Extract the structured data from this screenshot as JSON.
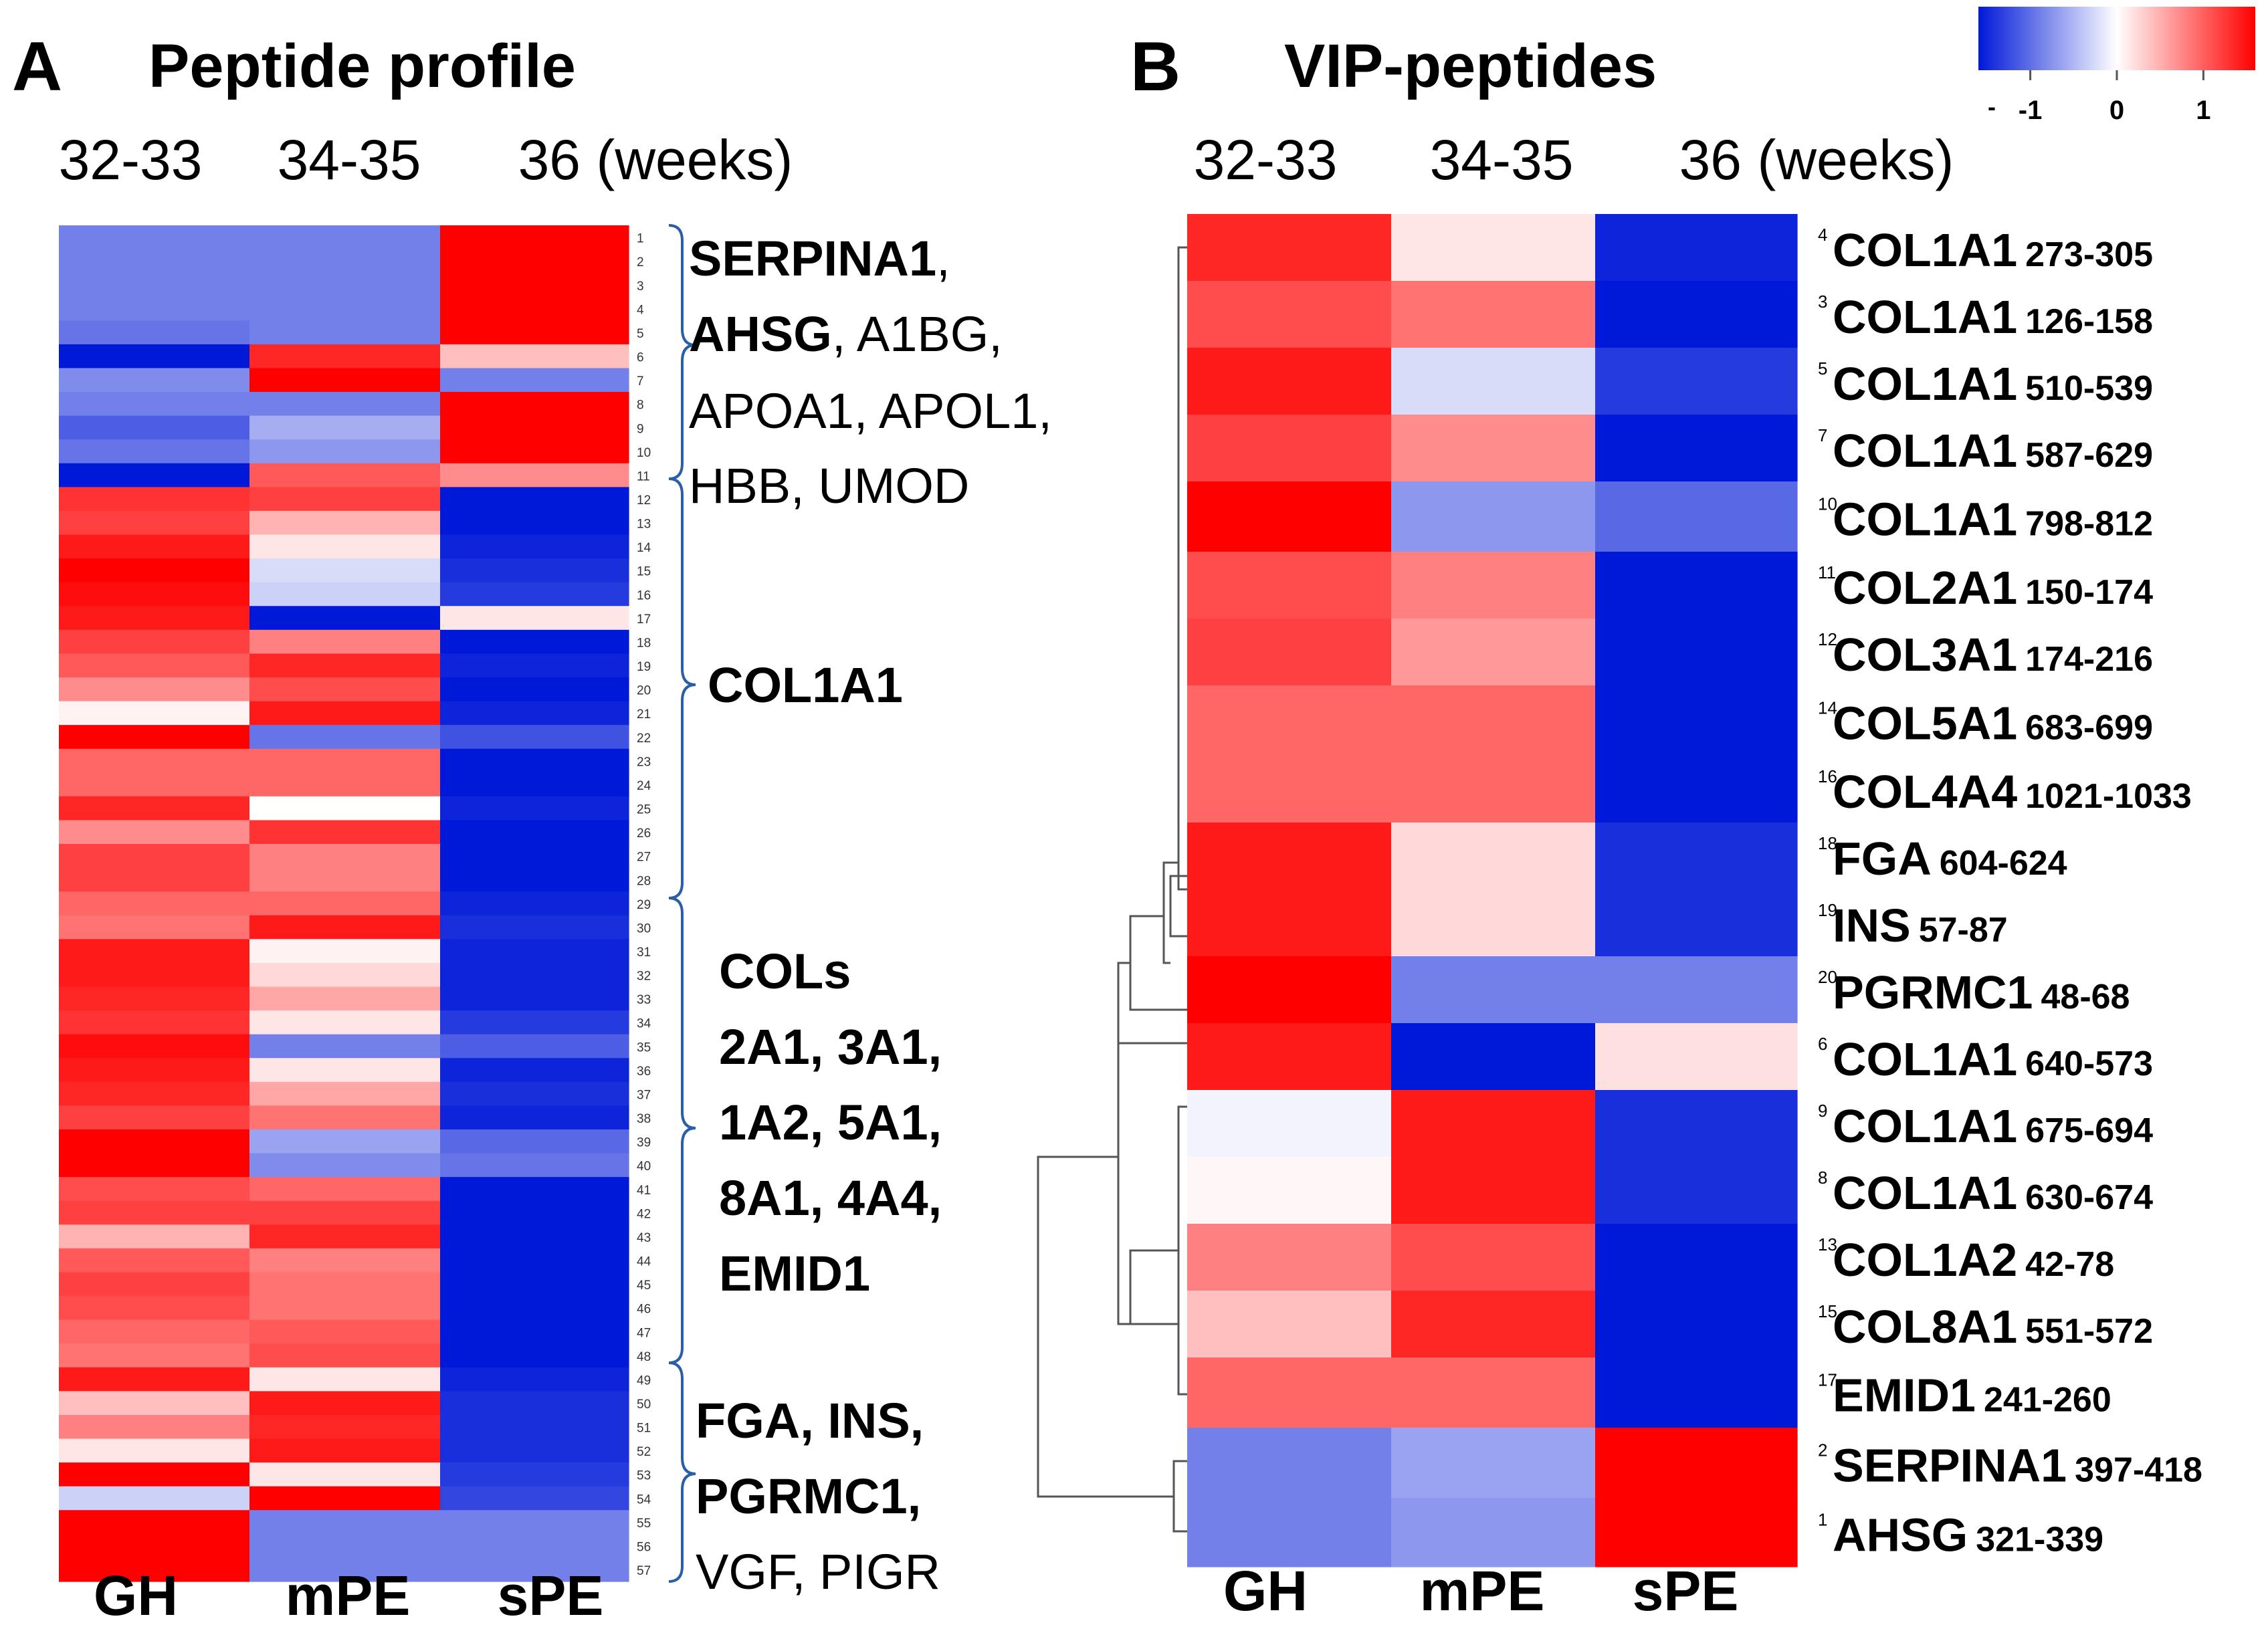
{
  "colors": {
    "low": "#0018d8",
    "mid": "#ffffff",
    "high": "#ff0000",
    "bracket": "#2a5fa8",
    "dendrogram": "#555555"
  },
  "colorbar": {
    "tick_labels": [
      "-1",
      "0",
      "1"
    ],
    "tick_values": [
      -1,
      0,
      1
    ],
    "range": [
      -1.6,
      1.6
    ],
    "minus_prefix": "-"
  },
  "chart_data": [
    {
      "type": "heatmap",
      "panel": "A",
      "title": "Peptide profile",
      "week_labels": [
        "32-33",
        "34-35",
        "36 (weeks)"
      ],
      "categories": [
        "GH",
        "mPE",
        "sPE"
      ],
      "row_labels": [
        "1",
        "2",
        "3",
        "4",
        "5",
        "6",
        "7",
        "8",
        "9",
        "10",
        "11",
        "12",
        "13",
        "14",
        "15",
        "16",
        "17",
        "18",
        "19",
        "20",
        "21",
        "22",
        "23",
        "24",
        "25",
        "26",
        "27",
        "28",
        "29",
        "30",
        "31",
        "32",
        "33",
        "34",
        "35",
        "36",
        "37",
        "38",
        "39",
        "40",
        "41",
        "42",
        "43",
        "44",
        "45",
        "46",
        "47",
        "48",
        "49",
        "50",
        "51",
        "52",
        "53",
        "54",
        "55",
        "56",
        "57"
      ],
      "values": [
        [
          -0.55,
          -0.55,
          1.0
        ],
        [
          -0.55,
          -0.55,
          1.0
        ],
        [
          -0.55,
          -0.55,
          1.0
        ],
        [
          -0.55,
          -0.55,
          1.0
        ],
        [
          -0.6,
          -0.55,
          1.0
        ],
        [
          -1.0,
          0.85,
          0.25
        ],
        [
          -0.5,
          1.0,
          -0.55
        ],
        [
          -0.55,
          -0.55,
          1.0
        ],
        [
          -0.7,
          -0.35,
          1.0
        ],
        [
          -0.6,
          -0.45,
          1.0
        ],
        [
          -1.0,
          0.65,
          0.45
        ],
        [
          0.8,
          0.75,
          -1.0
        ],
        [
          0.75,
          0.3,
          -1.0
        ],
        [
          0.9,
          0.1,
          -0.95
        ],
        [
          1.0,
          -0.15,
          -0.9
        ],
        [
          0.95,
          -0.2,
          -0.85
        ],
        [
          0.9,
          -1.0,
          0.1
        ],
        [
          0.75,
          0.5,
          -1.0
        ],
        [
          0.65,
          0.85,
          -0.95
        ],
        [
          0.45,
          0.7,
          -1.0
        ],
        [
          0.05,
          0.9,
          -0.95
        ],
        [
          1.0,
          -0.6,
          -0.75
        ],
        [
          0.6,
          0.6,
          -1.0
        ],
        [
          0.6,
          0.6,
          -1.0
        ],
        [
          0.85,
          0.0,
          -0.95
        ],
        [
          0.45,
          0.8,
          -1.0
        ],
        [
          0.75,
          0.5,
          -1.0
        ],
        [
          0.75,
          0.5,
          -1.0
        ],
        [
          0.6,
          0.6,
          -0.95
        ],
        [
          0.55,
          0.9,
          -0.9
        ],
        [
          0.9,
          0.05,
          -0.95
        ],
        [
          0.9,
          0.15,
          -0.95
        ],
        [
          0.85,
          0.35,
          -0.95
        ],
        [
          0.8,
          0.1,
          -0.85
        ],
        [
          0.95,
          -0.55,
          -0.7
        ],
        [
          0.9,
          0.1,
          -0.95
        ],
        [
          0.85,
          0.35,
          -0.9
        ],
        [
          0.75,
          0.55,
          -0.95
        ],
        [
          1.0,
          -0.4,
          -0.65
        ],
        [
          1.0,
          -0.5,
          -0.6
        ],
        [
          0.7,
          0.6,
          -1.0
        ],
        [
          0.75,
          0.75,
          -1.0
        ],
        [
          0.3,
          0.85,
          -1.0
        ],
        [
          0.65,
          0.5,
          -1.0
        ],
        [
          0.75,
          0.55,
          -1.0
        ],
        [
          0.7,
          0.55,
          -1.0
        ],
        [
          0.6,
          0.65,
          -1.0
        ],
        [
          0.55,
          0.7,
          -1.0
        ],
        [
          0.9,
          0.1,
          -0.95
        ],
        [
          0.25,
          0.9,
          -0.9
        ],
        [
          0.5,
          0.85,
          -0.9
        ],
        [
          0.1,
          0.9,
          -0.9
        ],
        [
          1.0,
          0.1,
          -0.85
        ],
        [
          -0.2,
          1.0,
          -0.8
        ],
        [
          1.0,
          -0.55,
          -0.55
        ],
        [
          1.0,
          -0.55,
          -0.55
        ],
        [
          1.0,
          -0.55,
          -0.55
        ]
      ],
      "groups": [
        {
          "bold": "SERPINA1",
          "rest": ",",
          "lines2_bold": "AHSG",
          "lines2_rest": ", A1BG,",
          "line3": "APOA1, APOL1,",
          "line4": "HBB, UMOD"
        },
        {
          "bold": "COL1A1"
        },
        {
          "line1": "COLs",
          "line2": "2A1, 3A1,",
          "line3": "1A2, 5A1,",
          "line4": "8A1, 4A4,",
          "line5": "EMID1"
        },
        {
          "bold1": "FGA, INS,",
          "bold2": "PGRMC1,",
          "line3": "VGF, PIGR"
        }
      ]
    },
    {
      "type": "heatmap",
      "panel": "B",
      "title": "VIP-peptides",
      "week_labels": [
        "32-33",
        "34-35",
        "36 (weeks)"
      ],
      "categories": [
        "GH",
        "mPE",
        "sPE"
      ],
      "rows": [
        {
          "num": "4",
          "name": "COL1A1",
          "range": "273-305",
          "values": [
            0.85,
            0.1,
            -0.95
          ]
        },
        {
          "num": "3",
          "name": "COL1A1",
          "range": "126-158",
          "values": [
            0.7,
            0.55,
            -1.0
          ]
        },
        {
          "num": "5",
          "name": "COL1A1",
          "range": "510-539",
          "values": [
            0.9,
            -0.15,
            -0.85
          ]
        },
        {
          "num": "7",
          "name": "COL1A1",
          "range": "587-629",
          "values": [
            0.75,
            0.45,
            -1.0
          ]
        },
        {
          "num": "10",
          "name": "COL1A1",
          "range": "798-812",
          "values": [
            1.0,
            -0.45,
            -0.65
          ]
        },
        {
          "num": "11",
          "name": "COL2A1",
          "range": "150-174",
          "values": [
            0.7,
            0.5,
            -1.0
          ]
        },
        {
          "num": "12",
          "name": "COL3A1",
          "range": "174-216",
          "values": [
            0.75,
            0.4,
            -1.0
          ]
        },
        {
          "num": "14",
          "name": "COL5A1",
          "range": "683-699",
          "values": [
            0.6,
            0.6,
            -1.0
          ]
        },
        {
          "num": "16",
          "name": "COL4A4",
          "range": "1021-1033",
          "values": [
            0.6,
            0.6,
            -1.0
          ]
        },
        {
          "num": "18",
          "name": "FGA",
          "range": "604-624",
          "values": [
            0.9,
            0.15,
            -0.9
          ]
        },
        {
          "num": "19",
          "name": "INS",
          "range": "57-87",
          "values": [
            0.9,
            0.15,
            -0.9
          ]
        },
        {
          "num": "20",
          "name": "PGRMC1",
          "range": "48-68",
          "values": [
            1.0,
            -0.55,
            -0.55
          ]
        },
        {
          "num": "6",
          "name": "COL1A1",
          "range": "640-573",
          "values": [
            0.9,
            -1.0,
            0.12
          ]
        },
        {
          "num": "9",
          "name": "COL1A1",
          "range": "675-694",
          "values": [
            -0.05,
            0.9,
            -0.9
          ]
        },
        {
          "num": "8",
          "name": "COL1A1",
          "range": "630-674",
          "values": [
            0.03,
            0.9,
            -0.9
          ]
        },
        {
          "num": "13",
          "name": "COL1A2",
          "range": "42-78",
          "values": [
            0.5,
            0.7,
            -1.0
          ]
        },
        {
          "num": "15",
          "name": "COL8A1",
          "range": "551-572",
          "values": [
            0.25,
            0.85,
            -1.0
          ]
        },
        {
          "num": "17",
          "name": "EMID1",
          "range": "241-260",
          "values": [
            0.6,
            0.6,
            -1.0
          ]
        },
        {
          "num": "2",
          "name": "SERPINA1",
          "range": "397-418",
          "values": [
            -0.55,
            -0.4,
            1.0
          ]
        },
        {
          "num": "1",
          "name": "AHSG",
          "range": "321-339",
          "values": [
            -0.55,
            -0.45,
            1.0
          ]
        }
      ]
    }
  ]
}
